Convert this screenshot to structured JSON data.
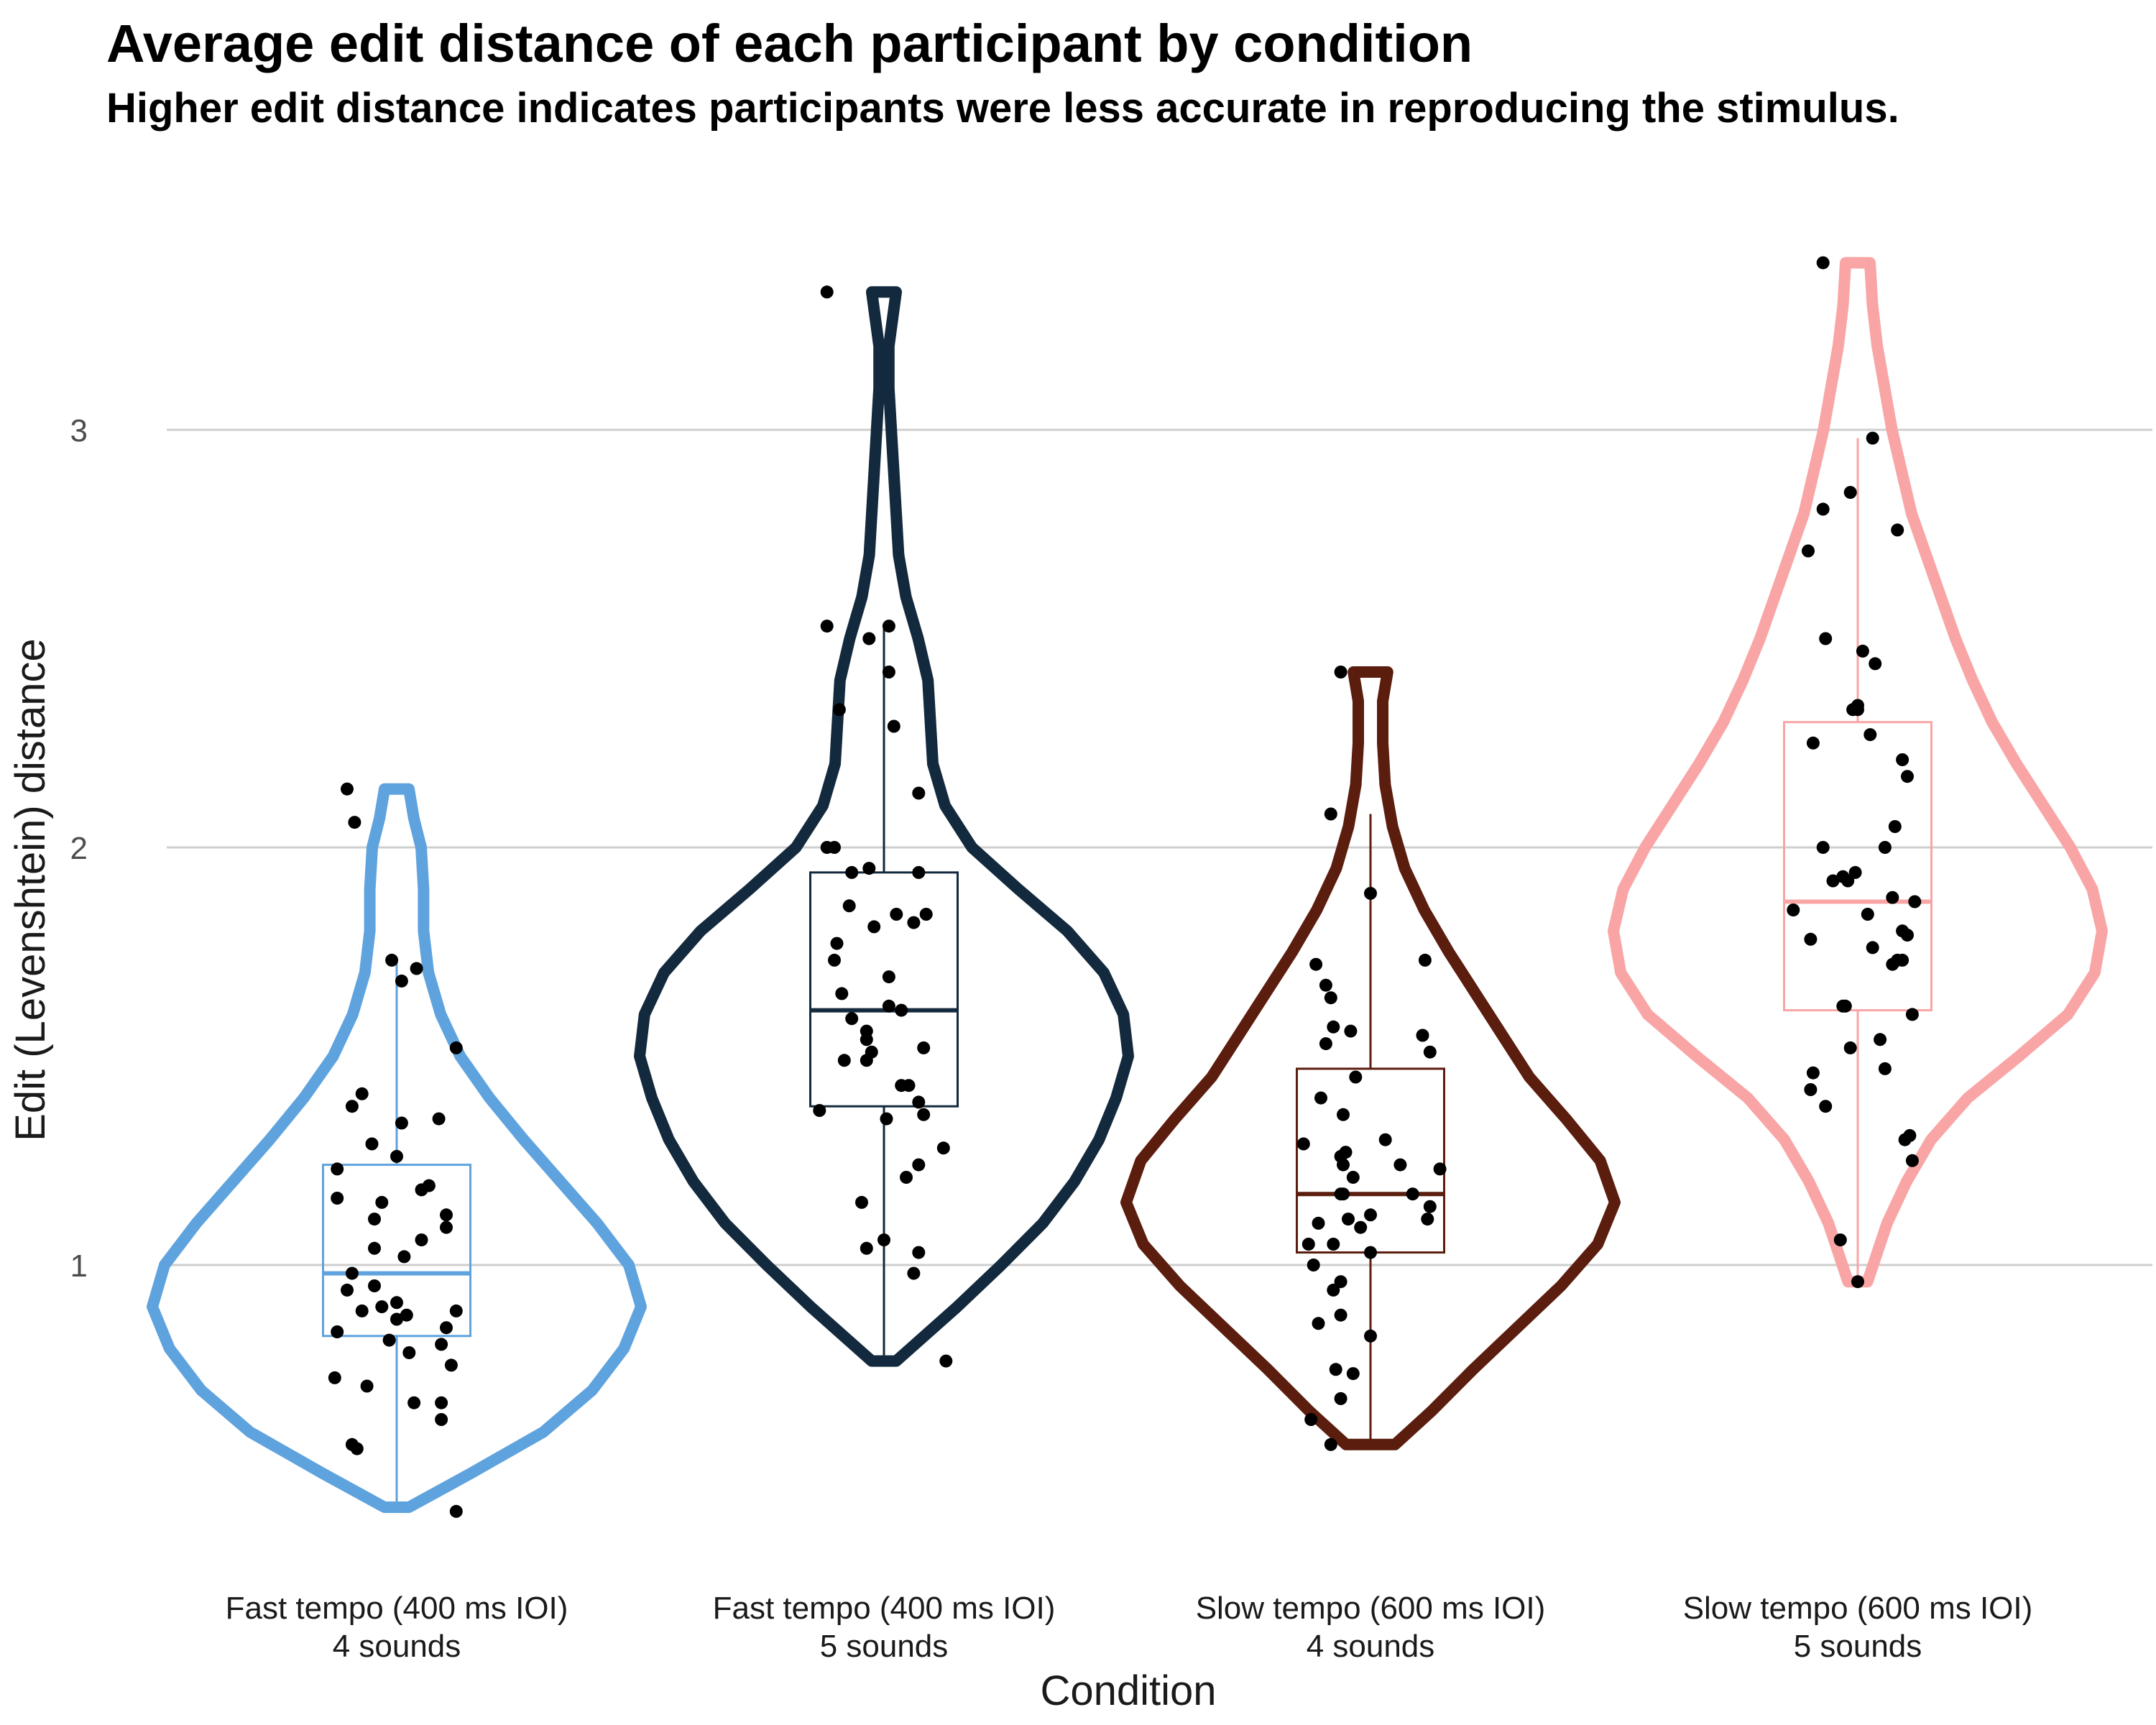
{
  "chart_data": {
    "type": "violin",
    "title": "Average edit distance of each participant by condition",
    "subtitle": "Higher edit distance indicates participants were less accurate in reproducing the stimulus.",
    "xlabel": "Condition",
    "ylabel": "Edit (Levenshtein) distance",
    "ylim": [
      0.3,
      3.45
    ],
    "yticks": [
      1,
      2,
      3
    ],
    "grid": "horizontal major lines",
    "legend": "none",
    "categories": [
      {
        "label_line1": "Fast tempo (400 ms IOI)",
        "label_line2": "4 sounds",
        "color": "#5fa3de",
        "box": {
          "whisker_low": 0.42,
          "q1": 0.83,
          "median": 0.98,
          "q3": 1.24,
          "whisker_high": 1.73
        },
        "violin_extent": [
          0.42,
          2.14
        ],
        "violin_profile": [
          [
            0.42,
            0.05
          ],
          [
            0.5,
            0.3
          ],
          [
            0.6,
            0.6
          ],
          [
            0.7,
            0.8
          ],
          [
            0.8,
            0.93
          ],
          [
            0.9,
            1.0
          ],
          [
            1.0,
            0.95
          ],
          [
            1.1,
            0.82
          ],
          [
            1.2,
            0.67
          ],
          [
            1.3,
            0.52
          ],
          [
            1.4,
            0.38
          ],
          [
            1.5,
            0.26
          ],
          [
            1.6,
            0.18
          ],
          [
            1.7,
            0.13
          ],
          [
            1.8,
            0.11
          ],
          [
            1.9,
            0.11
          ],
          [
            2.0,
            0.1
          ],
          [
            2.07,
            0.07
          ],
          [
            2.14,
            0.05
          ]
        ],
        "points": [
          [
            -0.2,
            2.14
          ],
          [
            -0.17,
            2.06
          ],
          [
            -0.02,
            1.73
          ],
          [
            0.08,
            1.71
          ],
          [
            0.02,
            1.68
          ],
          [
            0.24,
            1.52
          ],
          [
            -0.14,
            1.41
          ],
          [
            -0.18,
            1.38
          ],
          [
            0.02,
            1.34
          ],
          [
            0.17,
            1.35
          ],
          [
            -0.1,
            1.29
          ],
          [
            0.0,
            1.26
          ],
          [
            -0.24,
            1.23
          ],
          [
            0.1,
            1.18
          ],
          [
            -0.06,
            1.15
          ],
          [
            0.13,
            1.19
          ],
          [
            -0.24,
            1.16
          ],
          [
            0.2,
            1.12
          ],
          [
            -0.09,
            1.11
          ],
          [
            0.2,
            1.09
          ],
          [
            0.1,
            1.06
          ],
          [
            -0.09,
            1.04
          ],
          [
            0.03,
            1.02
          ],
          [
            -0.18,
            0.98
          ],
          [
            -0.09,
            0.95
          ],
          [
            -0.2,
            0.94
          ],
          [
            -0.06,
            0.9
          ],
          [
            0.0,
            0.91
          ],
          [
            -0.14,
            0.89
          ],
          [
            0.0,
            0.87
          ],
          [
            0.04,
            0.88
          ],
          [
            0.24,
            0.89
          ],
          [
            -0.24,
            0.84
          ],
          [
            0.2,
            0.85
          ],
          [
            -0.03,
            0.82
          ],
          [
            0.18,
            0.81
          ],
          [
            0.05,
            0.79
          ],
          [
            0.22,
            0.76
          ],
          [
            -0.25,
            0.73
          ],
          [
            -0.12,
            0.71
          ],
          [
            0.07,
            0.67
          ],
          [
            0.18,
            0.67
          ],
          [
            0.18,
            0.63
          ],
          [
            -0.16,
            0.56
          ],
          [
            -0.18,
            0.57
          ],
          [
            0.24,
            0.41
          ]
        ]
      },
      {
        "label_line1": "Fast tempo (400 ms IOI)",
        "label_line2": "5 sounds",
        "color": "#13293d",
        "box": {
          "whisker_low": 0.77,
          "q1": 1.38,
          "median": 1.61,
          "q3": 1.94,
          "whisker_high": 2.53
        },
        "violin_extent": [
          0.77,
          3.33
        ],
        "violin_profile": [
          [
            0.77,
            0.05
          ],
          [
            0.9,
            0.3
          ],
          [
            1.0,
            0.48
          ],
          [
            1.1,
            0.65
          ],
          [
            1.2,
            0.78
          ],
          [
            1.3,
            0.88
          ],
          [
            1.4,
            0.95
          ],
          [
            1.5,
            1.0
          ],
          [
            1.6,
            0.98
          ],
          [
            1.7,
            0.9
          ],
          [
            1.8,
            0.75
          ],
          [
            1.9,
            0.55
          ],
          [
            2.0,
            0.36
          ],
          [
            2.1,
            0.25
          ],
          [
            2.2,
            0.2
          ],
          [
            2.3,
            0.19
          ],
          [
            2.4,
            0.18
          ],
          [
            2.5,
            0.14
          ],
          [
            2.6,
            0.09
          ],
          [
            2.7,
            0.06
          ],
          [
            2.8,
            0.05
          ],
          [
            2.9,
            0.04
          ],
          [
            3.0,
            0.03
          ],
          [
            3.1,
            0.02
          ],
          [
            3.2,
            0.02
          ],
          [
            3.33,
            0.05
          ]
        ],
        "points": [
          [
            -0.23,
            3.33
          ],
          [
            -0.23,
            2.53
          ],
          [
            0.02,
            2.53
          ],
          [
            -0.06,
            2.5
          ],
          [
            0.02,
            2.42
          ],
          [
            -0.18,
            2.33
          ],
          [
            0.04,
            2.29
          ],
          [
            0.14,
            2.13
          ],
          [
            -0.23,
            2.0
          ],
          [
            -0.2,
            2.0
          ],
          [
            -0.13,
            1.94
          ],
          [
            -0.06,
            1.95
          ],
          [
            0.14,
            1.94
          ],
          [
            -0.14,
            1.86
          ],
          [
            0.05,
            1.84
          ],
          [
            0.17,
            1.84
          ],
          [
            -0.04,
            1.81
          ],
          [
            0.12,
            1.82
          ],
          [
            -0.19,
            1.77
          ],
          [
            -0.2,
            1.73
          ],
          [
            0.02,
            1.69
          ],
          [
            -0.17,
            1.65
          ],
          [
            0.02,
            1.62
          ],
          [
            0.07,
            1.61
          ],
          [
            -0.13,
            1.59
          ],
          [
            0.16,
            1.52
          ],
          [
            -0.07,
            1.56
          ],
          [
            -0.07,
            1.54
          ],
          [
            -0.05,
            1.51
          ],
          [
            -0.16,
            1.49
          ],
          [
            -0.07,
            1.49
          ],
          [
            0.07,
            1.43
          ],
          [
            0.1,
            1.43
          ],
          [
            0.14,
            1.39
          ],
          [
            0.16,
            1.36
          ],
          [
            -0.26,
            1.37
          ],
          [
            0.01,
            1.35
          ],
          [
            0.24,
            1.28
          ],
          [
            0.14,
            1.24
          ],
          [
            0.09,
            1.21
          ],
          [
            -0.09,
            1.15
          ],
          [
            0.14,
            1.03
          ],
          [
            -0.07,
            1.04
          ],
          [
            0.0,
            1.06
          ],
          [
            0.12,
            0.98
          ],
          [
            0.25,
            0.77
          ]
        ]
      },
      {
        "label_line1": "Slow tempo (600 ms IOI)",
        "label_line2": "4 sounds",
        "color": "#5b1d0e",
        "box": {
          "whisker_low": 0.57,
          "q1": 1.03,
          "median": 1.17,
          "q3": 1.47,
          "whisker_high": 2.08
        },
        "violin_extent": [
          0.57,
          2.42
        ],
        "violin_profile": [
          [
            0.57,
            0.1
          ],
          [
            0.65,
            0.25
          ],
          [
            0.75,
            0.42
          ],
          [
            0.85,
            0.6
          ],
          [
            0.95,
            0.78
          ],
          [
            1.05,
            0.93
          ],
          [
            1.15,
            1.0
          ],
          [
            1.25,
            0.94
          ],
          [
            1.35,
            0.8
          ],
          [
            1.45,
            0.65
          ],
          [
            1.55,
            0.54
          ],
          [
            1.65,
            0.43
          ],
          [
            1.75,
            0.32
          ],
          [
            1.85,
            0.22
          ],
          [
            1.95,
            0.14
          ],
          [
            2.05,
            0.09
          ],
          [
            2.15,
            0.06
          ],
          [
            2.25,
            0.05
          ],
          [
            2.35,
            0.05
          ],
          [
            2.42,
            0.07
          ]
        ],
        "points": [
          [
            -0.12,
            2.42
          ],
          [
            -0.16,
            2.08
          ],
          [
            0.0,
            1.89
          ],
          [
            -0.22,
            1.72
          ],
          [
            0.22,
            1.73
          ],
          [
            -0.18,
            1.67
          ],
          [
            -0.16,
            1.64
          ],
          [
            -0.15,
            1.57
          ],
          [
            -0.08,
            1.56
          ],
          [
            -0.18,
            1.53
          ],
          [
            0.21,
            1.55
          ],
          [
            0.24,
            1.51
          ],
          [
            -0.06,
            1.45
          ],
          [
            -0.2,
            1.4
          ],
          [
            -0.11,
            1.36
          ],
          [
            0.06,
            1.3
          ],
          [
            -0.27,
            1.29
          ],
          [
            -0.1,
            1.27
          ],
          [
            -0.12,
            1.26
          ],
          [
            -0.11,
            1.24
          ],
          [
            0.28,
            1.23
          ],
          [
            0.12,
            1.24
          ],
          [
            -0.07,
            1.21
          ],
          [
            -0.12,
            1.17
          ],
          [
            -0.11,
            1.17
          ],
          [
            0.17,
            1.17
          ],
          [
            0.24,
            1.14
          ],
          [
            -0.09,
            1.11
          ],
          [
            0.23,
            1.11
          ],
          [
            -0.21,
            1.1
          ],
          [
            0.0,
            1.12
          ],
          [
            -0.04,
            1.09
          ],
          [
            -0.15,
            1.05
          ],
          [
            -0.25,
            1.05
          ],
          [
            0.0,
            1.03
          ],
          [
            -0.23,
            1.0
          ],
          [
            -0.12,
            0.96
          ],
          [
            -0.15,
            0.94
          ],
          [
            -0.12,
            0.88
          ],
          [
            -0.21,
            0.86
          ],
          [
            0.0,
            0.83
          ],
          [
            -0.14,
            0.75
          ],
          [
            -0.07,
            0.74
          ],
          [
            -0.12,
            0.68
          ],
          [
            -0.24,
            0.63
          ],
          [
            -0.16,
            0.57
          ]
        ]
      },
      {
        "label_line1": "Slow tempo (600 ms IOI)",
        "label_line2": "5 sounds",
        "color": "#f9a5a5",
        "box": {
          "whisker_low": 0.96,
          "q1": 1.61,
          "median": 1.87,
          "q3": 2.3,
          "whisker_high": 2.98
        },
        "violin_extent": [
          0.96,
          3.4
        ],
        "violin_profile": [
          [
            0.96,
            0.04
          ],
          [
            1.1,
            0.12
          ],
          [
            1.2,
            0.2
          ],
          [
            1.3,
            0.3
          ],
          [
            1.4,
            0.45
          ],
          [
            1.5,
            0.66
          ],
          [
            1.6,
            0.86
          ],
          [
            1.7,
            0.97
          ],
          [
            1.8,
            1.0
          ],
          [
            1.9,
            0.96
          ],
          [
            2.0,
            0.87
          ],
          [
            2.1,
            0.76
          ],
          [
            2.2,
            0.65
          ],
          [
            2.3,
            0.55
          ],
          [
            2.4,
            0.47
          ],
          [
            2.5,
            0.4
          ],
          [
            2.6,
            0.34
          ],
          [
            2.7,
            0.28
          ],
          [
            2.8,
            0.22
          ],
          [
            2.9,
            0.18
          ],
          [
            3.0,
            0.14
          ],
          [
            3.1,
            0.11
          ],
          [
            3.2,
            0.08
          ],
          [
            3.3,
            0.06
          ],
          [
            3.4,
            0.05
          ]
        ],
        "points": [
          [
            -0.14,
            3.4
          ],
          [
            0.06,
            2.98
          ],
          [
            -0.03,
            2.85
          ],
          [
            -0.14,
            2.81
          ],
          [
            0.16,
            2.76
          ],
          [
            -0.2,
            2.71
          ],
          [
            -0.13,
            2.5
          ],
          [
            0.02,
            2.47
          ],
          [
            0.07,
            2.44
          ],
          [
            0.0,
            2.34
          ],
          [
            0.0,
            2.33
          ],
          [
            -0.02,
            2.33
          ],
          [
            0.05,
            2.27
          ],
          [
            -0.18,
            2.25
          ],
          [
            0.18,
            2.21
          ],
          [
            0.2,
            2.17
          ],
          [
            0.15,
            2.05
          ],
          [
            -0.14,
            2.0
          ],
          [
            0.11,
            2.0
          ],
          [
            -0.1,
            1.92
          ],
          [
            -0.06,
            1.93
          ],
          [
            -0.04,
            1.92
          ],
          [
            -0.01,
            1.94
          ],
          [
            0.14,
            1.88
          ],
          [
            0.23,
            1.87
          ],
          [
            -0.26,
            1.85
          ],
          [
            0.04,
            1.84
          ],
          [
            0.18,
            1.8
          ],
          [
            0.2,
            1.79
          ],
          [
            -0.19,
            1.78
          ],
          [
            0.06,
            1.76
          ],
          [
            0.16,
            1.73
          ],
          [
            0.18,
            1.73
          ],
          [
            0.14,
            1.72
          ],
          [
            -0.05,
            1.62
          ],
          [
            -0.06,
            1.62
          ],
          [
            0.22,
            1.6
          ],
          [
            0.09,
            1.54
          ],
          [
            -0.03,
            1.52
          ],
          [
            0.11,
            1.47
          ],
          [
            -0.18,
            1.46
          ],
          [
            -0.19,
            1.42
          ],
          [
            0.21,
            1.31
          ],
          [
            0.19,
            1.3
          ],
          [
            -0.13,
            1.38
          ],
          [
            0.22,
            1.25
          ],
          [
            -0.07,
            1.06
          ],
          [
            0.0,
            0.96
          ]
        ]
      }
    ]
  }
}
